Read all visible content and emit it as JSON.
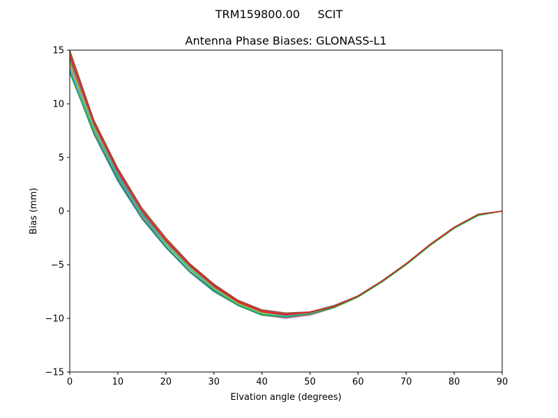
{
  "figure": {
    "suptitle": "TRM159800.00     SCIT"
  },
  "chart_data": {
    "type": "line",
    "title": "Antenna Phase Biases: GLONASS-L1",
    "xlabel": "Elvation angle (degrees)",
    "ylabel": "Bias (mm)",
    "xlim": [
      0,
      90
    ],
    "ylim": [
      -15,
      15
    ],
    "xticks": [
      0,
      10,
      20,
      30,
      40,
      50,
      60,
      70,
      80,
      90
    ],
    "yticks": [
      -15,
      -10,
      -5,
      0,
      5,
      10,
      15
    ],
    "ytick_labels": [
      "−15",
      "−10",
      "−5",
      "0",
      "5",
      "10",
      "15"
    ],
    "grid": false,
    "legend": "none",
    "x": [
      0,
      5,
      10,
      15,
      20,
      25,
      30,
      35,
      40,
      45,
      50,
      55,
      60,
      65,
      70,
      75,
      80,
      85,
      90
    ],
    "series": [
      {
        "color": "#1f77b4",
        "values": [
          13.0,
          7.2,
          2.8,
          -0.7,
          -3.4,
          -5.7,
          -7.5,
          -8.8,
          -9.7,
          -9.9,
          -9.7,
          -9.0,
          -8.0,
          -6.6,
          -5.0,
          -3.2,
          -1.6,
          -0.4,
          0.0
        ]
      },
      {
        "color": "#ff7f0e",
        "values": [
          14.8,
          8.4,
          3.9,
          0.2,
          -2.6,
          -5.0,
          -6.9,
          -8.4,
          -9.3,
          -9.6,
          -9.4,
          -8.9,
          -7.9,
          -6.5,
          -4.9,
          -3.1,
          -1.5,
          -0.3,
          0.0
        ]
      },
      {
        "color": "#2ca02c",
        "values": [
          14.0,
          7.9,
          3.4,
          -0.2,
          -3.0,
          -5.3,
          -7.2,
          -8.6,
          -9.5,
          -9.8,
          -9.6,
          -9.0,
          -8.0,
          -6.6,
          -5.0,
          -3.2,
          -1.6,
          -0.4,
          0.0
        ]
      },
      {
        "color": "#d62728",
        "values": [
          14.4,
          8.2,
          3.7,
          0.0,
          -2.8,
          -5.1,
          -7.0,
          -8.5,
          -9.4,
          -9.7,
          -9.5,
          -8.9,
          -7.9,
          -6.5,
          -4.9,
          -3.1,
          -1.5,
          -0.3,
          0.0
        ]
      },
      {
        "color": "#9467bd",
        "values": [
          13.7,
          7.7,
          3.2,
          -0.4,
          -3.1,
          -5.4,
          -7.3,
          -8.7,
          -9.6,
          -9.9,
          -9.7,
          -9.0,
          -8.0,
          -6.6,
          -5.0,
          -3.2,
          -1.6,
          -0.4,
          0.0
        ]
      },
      {
        "color": "#8c564b",
        "values": [
          15.0,
          8.5,
          4.0,
          0.3,
          -2.5,
          -4.9,
          -6.8,
          -8.3,
          -9.2,
          -9.5,
          -9.4,
          -8.8,
          -7.9,
          -6.5,
          -4.9,
          -3.1,
          -1.5,
          -0.3,
          0.0
        ]
      },
      {
        "color": "#e377c2",
        "values": [
          13.4,
          7.5,
          3.0,
          -0.5,
          -3.3,
          -5.6,
          -7.4,
          -8.8,
          -9.7,
          -10.0,
          -9.7,
          -9.0,
          -8.0,
          -6.6,
          -5.0,
          -3.2,
          -1.6,
          -0.4,
          0.0
        ]
      },
      {
        "color": "#7f7f7f",
        "values": [
          14.2,
          8.0,
          3.5,
          -0.1,
          -2.9,
          -5.2,
          -7.1,
          -8.6,
          -9.5,
          -9.8,
          -9.5,
          -8.9,
          -7.9,
          -6.5,
          -4.9,
          -3.1,
          -1.5,
          -0.3,
          0.0
        ]
      },
      {
        "color": "#bcbd22",
        "values": [
          13.8,
          7.8,
          3.3,
          -0.3,
          -3.0,
          -5.3,
          -7.2,
          -8.6,
          -9.5,
          -9.8,
          -9.6,
          -9.0,
          -8.0,
          -6.6,
          -5.0,
          -3.2,
          -1.6,
          -0.4,
          0.0
        ]
      },
      {
        "color": "#17becf",
        "values": [
          13.2,
          7.6,
          3.3,
          -0.3,
          -3.1,
          -5.4,
          -7.3,
          -8.7,
          -9.6,
          -9.8,
          -9.6,
          -9.0,
          -8.0,
          -6.6,
          -5.0,
          -3.2,
          -1.6,
          -0.4,
          0.0
        ]
      },
      {
        "color": "#2ca02c",
        "values": [
          12.9,
          7.3,
          3.0,
          -0.6,
          -3.3,
          -5.6,
          -7.4,
          -8.8,
          -9.7,
          -9.9,
          -9.6,
          -9.0,
          -8.0,
          -6.6,
          -5.0,
          -3.2,
          -1.6,
          -0.4,
          0.0
        ]
      },
      {
        "color": "#d62728",
        "values": [
          14.6,
          8.3,
          3.8,
          0.1,
          -2.7,
          -5.0,
          -6.9,
          -8.4,
          -9.3,
          -9.6,
          -9.4,
          -8.9,
          -7.9,
          -6.5,
          -4.9,
          -3.1,
          -1.5,
          -0.3,
          0.0
        ]
      }
    ]
  }
}
